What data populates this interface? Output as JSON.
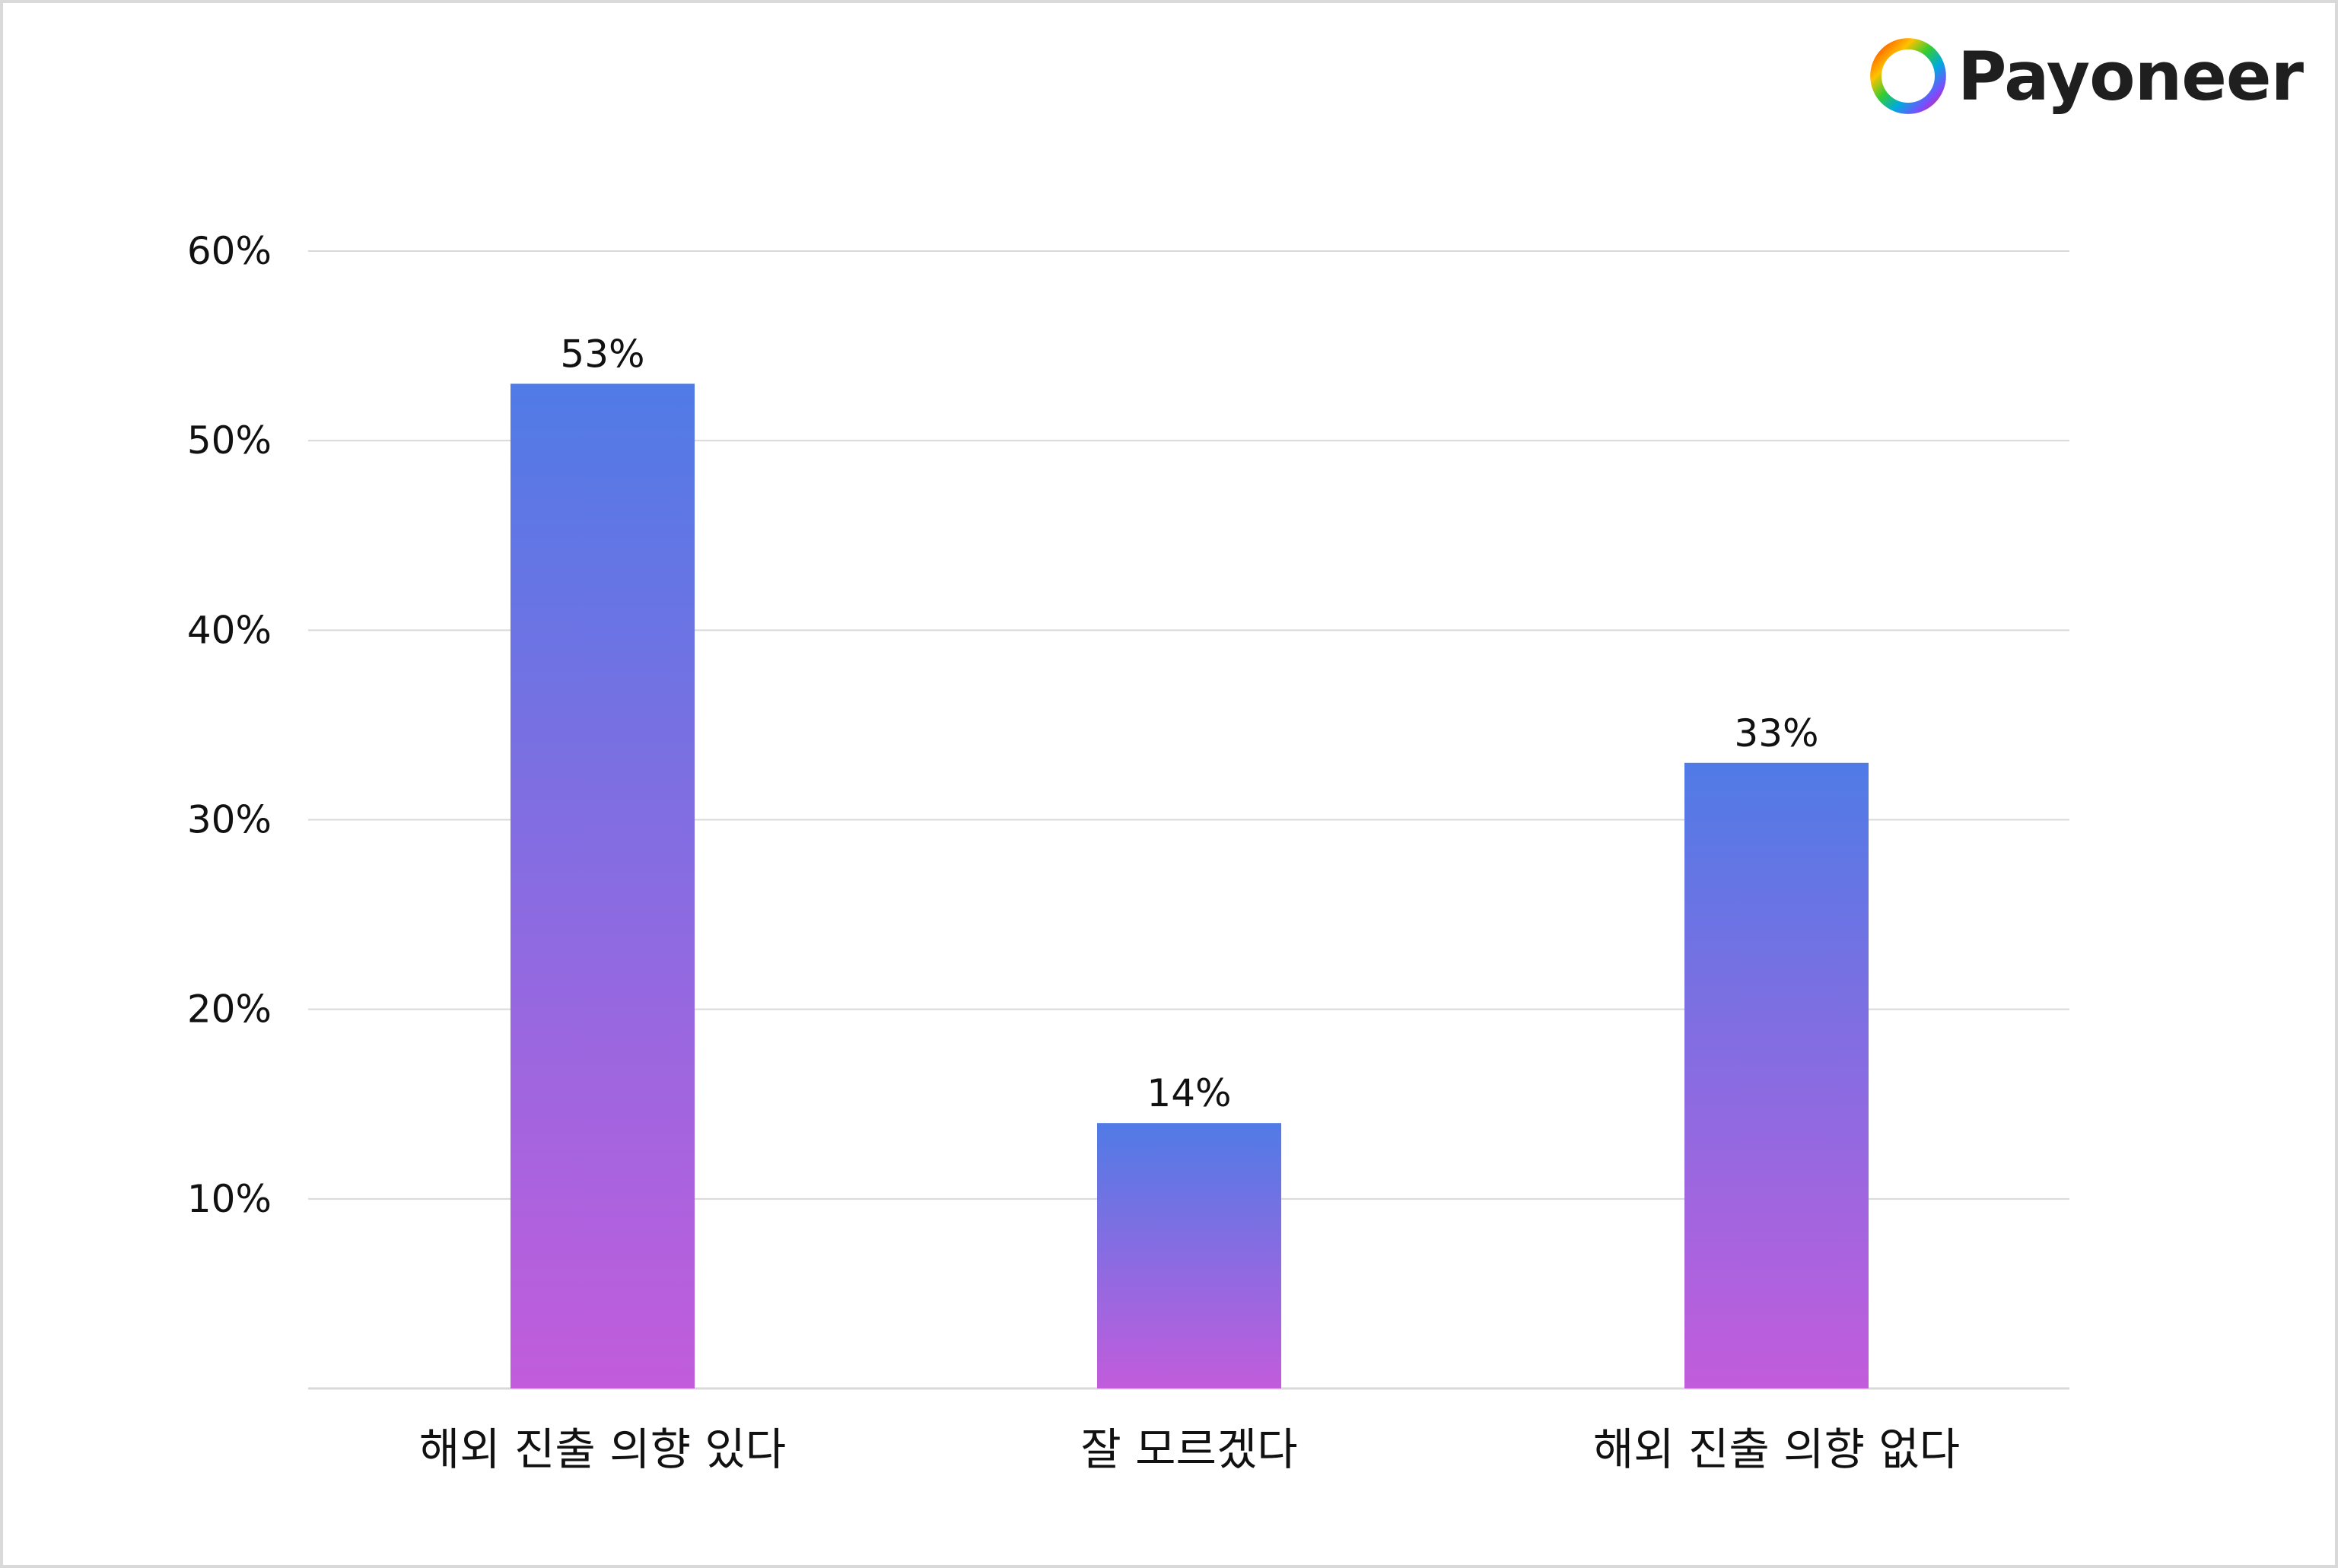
{
  "brand": {
    "name": "Payoneer",
    "logo_icon": "payoneer-ring-icon",
    "ring_colors": [
      "#ff4800",
      "#ffc200",
      "#33cc33",
      "#00a9e0",
      "#7b4dff",
      "#e0207a"
    ]
  },
  "chart_data": {
    "type": "bar",
    "categories": [
      "해외 진출 의향 있다",
      "잘 모르겠다",
      "해외 진출 의향 없다"
    ],
    "values": [
      53,
      14,
      33
    ],
    "value_labels": [
      "53%",
      "14%",
      "33%"
    ],
    "yticks": [
      {
        "value": 10,
        "label": "10%"
      },
      {
        "value": 20,
        "label": "20%"
      },
      {
        "value": 30,
        "label": "30%"
      },
      {
        "value": 40,
        "label": "40%"
      },
      {
        "value": 50,
        "label": "50%"
      },
      {
        "value": 60,
        "label": "60%"
      }
    ],
    "ylim": [
      0,
      60
    ],
    "title": "",
    "xlabel": "",
    "ylabel": "",
    "grid": true,
    "legend": "none",
    "colors": {
      "bar_top": "#507be6",
      "bar_bottom": "#c25cdc",
      "grid": "#d9d9d9",
      "text": "#111111"
    }
  }
}
